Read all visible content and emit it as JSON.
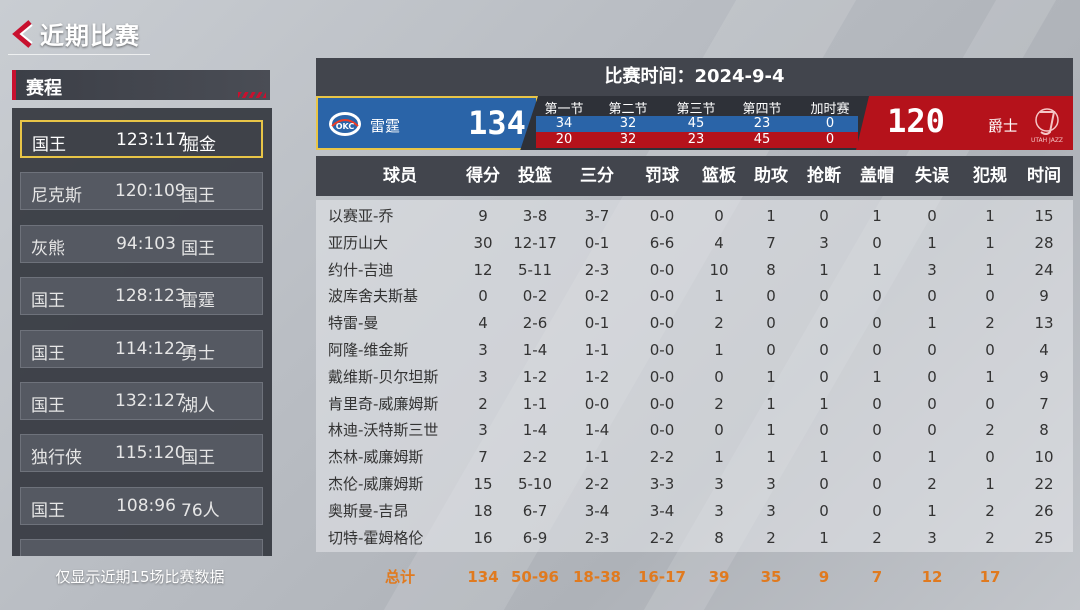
{
  "header": {
    "title": "近期比赛"
  },
  "schedule": {
    "title": "赛程",
    "games": [
      {
        "team1": "国王",
        "score": "123:117",
        "team2": "掘金",
        "selected": true
      },
      {
        "team1": "尼克斯",
        "score": "120:109",
        "team2": "国王",
        "selected": false
      },
      {
        "team1": "灰熊",
        "score": "94:103",
        "team2": "国王",
        "selected": false
      },
      {
        "team1": "国王",
        "score": "128:123",
        "team2": "雷霆",
        "selected": false
      },
      {
        "team1": "国王",
        "score": "114:122",
        "team2": "勇士",
        "selected": false
      },
      {
        "team1": "国王",
        "score": "132:127",
        "team2": "湖人",
        "selected": false
      },
      {
        "team1": "独行侠",
        "score": "115:120",
        "team2": "国王",
        "selected": false
      },
      {
        "team1": "国王",
        "score": "108:96",
        "team2": "76人",
        "selected": false
      }
    ],
    "footer": "仅显示近期15场比赛数据"
  },
  "match": {
    "time": "比赛时间：2024-9-4",
    "home": {
      "name": "雷霆",
      "score": "134",
      "logo_text": "OKC",
      "color": "#2a64a8",
      "quarters": [
        "34",
        "32",
        "45",
        "23",
        "0"
      ]
    },
    "away": {
      "name": "爵士",
      "score": "120",
      "logo_text": "UTAH JAZZ",
      "color": "#b5121b",
      "quarters": [
        "20",
        "32",
        "23",
        "45",
        "0"
      ]
    },
    "quarter_labels": [
      "第一节",
      "第二节",
      "第三节",
      "第四节",
      "加时赛"
    ]
  },
  "stats": {
    "columns": [
      "球员",
      "得分",
      "投篮",
      "三分",
      "罚球",
      "篮板",
      "助攻",
      "抢断",
      "盖帽",
      "失误",
      "犯规",
      "时间"
    ],
    "rows": [
      [
        "以赛亚-乔",
        "9",
        "3-8",
        "3-7",
        "0-0",
        "0",
        "1",
        "0",
        "1",
        "0",
        "1",
        "15"
      ],
      [
        "亚历山大",
        "30",
        "12-17",
        "0-1",
        "6-6",
        "4",
        "7",
        "3",
        "0",
        "1",
        "1",
        "28"
      ],
      [
        "约什-吉迪",
        "12",
        "5-11",
        "2-3",
        "0-0",
        "10",
        "8",
        "1",
        "1",
        "3",
        "1",
        "24"
      ],
      [
        "波库舍夫斯基",
        "0",
        "0-2",
        "0-2",
        "0-0",
        "1",
        "0",
        "0",
        "0",
        "0",
        "0",
        "9"
      ],
      [
        "特雷-曼",
        "4",
        "2-6",
        "0-1",
        "0-0",
        "2",
        "0",
        "0",
        "0",
        "1",
        "2",
        "13"
      ],
      [
        "阿隆-维金斯",
        "3",
        "1-4",
        "1-1",
        "0-0",
        "1",
        "0",
        "0",
        "0",
        "0",
        "0",
        "4"
      ],
      [
        "戴维斯-贝尔坦斯",
        "3",
        "1-2",
        "1-2",
        "0-0",
        "0",
        "1",
        "0",
        "1",
        "0",
        "1",
        "9"
      ],
      [
        "肯里奇-威廉姆斯",
        "2",
        "1-1",
        "0-0",
        "0-0",
        "2",
        "1",
        "1",
        "0",
        "0",
        "0",
        "7"
      ],
      [
        "林迪-沃特斯三世",
        "3",
        "1-4",
        "1-4",
        "0-0",
        "0",
        "1",
        "0",
        "0",
        "0",
        "2",
        "8"
      ],
      [
        "杰林-威廉姆斯",
        "7",
        "2-2",
        "1-1",
        "2-2",
        "1",
        "1",
        "1",
        "0",
        "1",
        "0",
        "10"
      ],
      [
        "杰伦-威廉姆斯",
        "15",
        "5-10",
        "2-2",
        "3-3",
        "3",
        "3",
        "0",
        "0",
        "2",
        "1",
        "22"
      ],
      [
        "奥斯曼-吉昂",
        "18",
        "6-7",
        "3-4",
        "3-4",
        "3",
        "3",
        "0",
        "0",
        "1",
        "2",
        "26"
      ],
      [
        "切特-霍姆格伦",
        "16",
        "6-9",
        "2-3",
        "2-2",
        "8",
        "2",
        "1",
        "2",
        "3",
        "2",
        "25"
      ]
    ],
    "totals": [
      "总计",
      "134",
      "50-96",
      "18-38",
      "16-17",
      "39",
      "35",
      "9",
      "7",
      "12",
      "17"
    ]
  }
}
